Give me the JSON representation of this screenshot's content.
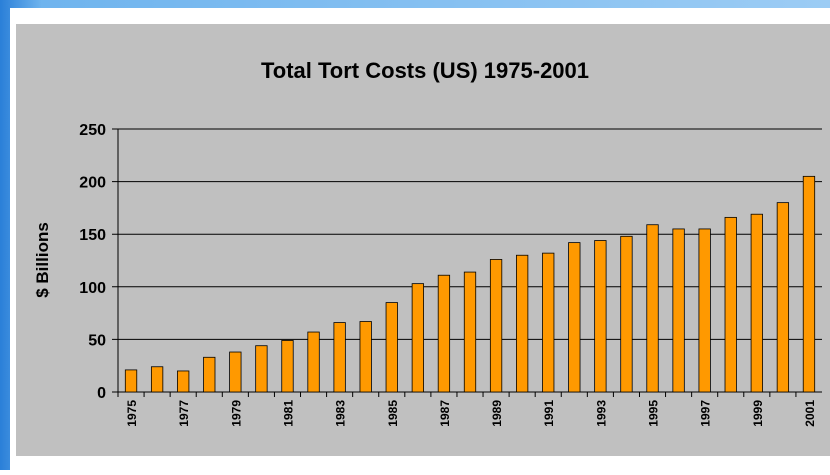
{
  "chart_data": {
    "type": "bar",
    "title": "Total Tort Costs (US) 1975-2001",
    "y_label": "$ Billions",
    "categories": [
      "1975",
      null,
      "1977",
      null,
      "1979",
      null,
      "1981",
      null,
      "1983",
      null,
      "1985",
      null,
      "1987",
      null,
      "1989",
      null,
      "1991",
      null,
      "1993",
      null,
      "1995",
      null,
      "1997",
      null,
      "1999",
      null,
      "2001"
    ],
    "values": [
      21,
      24,
      20,
      33,
      38,
      44,
      49,
      57,
      66,
      67,
      85,
      103,
      111,
      114,
      126,
      130,
      132,
      142,
      144,
      148,
      159,
      155,
      155,
      166,
      169,
      180,
      205
    ],
    "color": "#ff9900",
    "ylim": [
      0,
      250
    ],
    "yticks": [
      0,
      50,
      100,
      150,
      200,
      250
    ],
    "grid": true
  }
}
